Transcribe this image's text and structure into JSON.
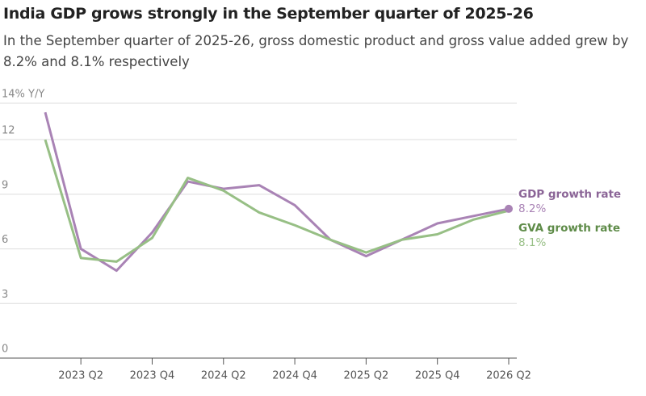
{
  "chart_data": {
    "type": "line",
    "title": "India GDP grows strongly in the September quarter of 2025-26",
    "subtitle": "In the September quarter of 2025-26, gross domestic product and gross value added grew by 8.2% and 8.1% respectively",
    "categories": [
      null,
      "2023 Q2",
      null,
      "2023 Q4",
      null,
      "2024 Q2",
      null,
      "2024 Q4",
      null,
      "2025 Q2",
      null,
      "2025 Q4",
      null,
      "2026 Q2"
    ],
    "series": [
      {
        "name": "GDP growth rate",
        "color": "#a983b5",
        "label_color": "#8b6597",
        "values": [
          13.5,
          6.0,
          4.8,
          6.9,
          9.7,
          9.3,
          9.5,
          8.4,
          6.5,
          5.6,
          6.5,
          7.4,
          7.8,
          8.2
        ],
        "value_labels": [
          null,
          null,
          null,
          null,
          null,
          null,
          null,
          null,
          null,
          null,
          null,
          null,
          null,
          "8.2%"
        ]
      },
      {
        "name": "GVA growth rate",
        "color": "#97bf85",
        "label_color": "#5e8b48",
        "values": [
          12.0,
          5.5,
          5.3,
          6.6,
          9.9,
          9.2,
          8.0,
          7.3,
          6.5,
          5.8,
          6.5,
          6.8,
          7.6,
          8.1
        ],
        "value_labels": [
          null,
          null,
          null,
          null,
          null,
          null,
          null,
          null,
          null,
          null,
          null,
          null,
          null,
          "8.1%"
        ]
      }
    ],
    "ylim": [
      0,
      14
    ],
    "yticks": [
      0,
      3,
      6,
      9,
      12,
      {
        "value": 14,
        "label": "14% Y/Y"
      }
    ],
    "grid": true
  }
}
